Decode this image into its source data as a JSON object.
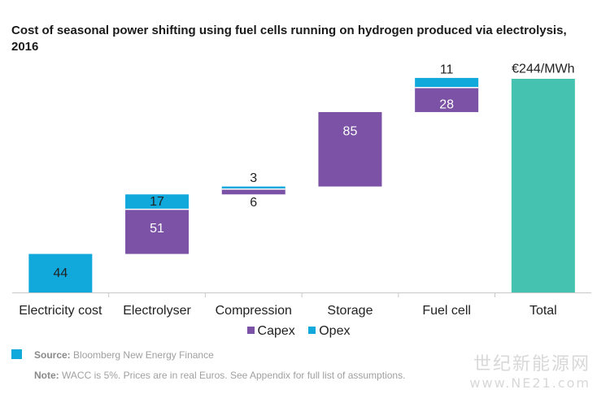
{
  "title": "Cost of seasonal power shifting using fuel cells running on hydrogen produced via electrolysis, 2016",
  "chart_data": {
    "type": "bar",
    "subtype": "waterfall",
    "categories": [
      "Electricity cost",
      "Electrolyser",
      "Compression",
      "Storage",
      "Fuel cell",
      "Total"
    ],
    "series": [
      {
        "name": "Capex",
        "color": "#7b52a5",
        "values": [
          0,
          51,
          6,
          85,
          28,
          0
        ]
      },
      {
        "name": "Opex",
        "color": "#11a9dc",
        "values": [
          44,
          17,
          3,
          0,
          11,
          0
        ]
      }
    ],
    "total": {
      "value": 244,
      "label": "€244/MWh",
      "color": "#45c3b0"
    },
    "data_labels": {
      "Electricity cost": {
        "Opex": "44"
      },
      "Electrolyser": {
        "Capex": "51",
        "Opex": "17"
      },
      "Compression": {
        "Capex": "6",
        "Opex": "3"
      },
      "Storage": {
        "Capex": "85"
      },
      "Fuel cell": {
        "Capex": "28",
        "Opex": "11"
      }
    },
    "legend": {
      "position": "bottom"
    },
    "grid": false
  },
  "legend_items": [
    {
      "name": "Capex",
      "color": "#7b52a5"
    },
    {
      "name": "Opex",
      "color": "#11a9dc"
    }
  ],
  "footer": {
    "source_label": "Source:",
    "source_text": "Bloomberg New Energy Finance",
    "note_label": "Note:",
    "note_text": "WACC is 5%. Prices are in real Euros. See Appendix for full list of assumptions.",
    "source_mark_color": "#11a9dc"
  },
  "watermark": {
    "line1": "世纪新能源网",
    "line2": "www.NE21.com"
  }
}
